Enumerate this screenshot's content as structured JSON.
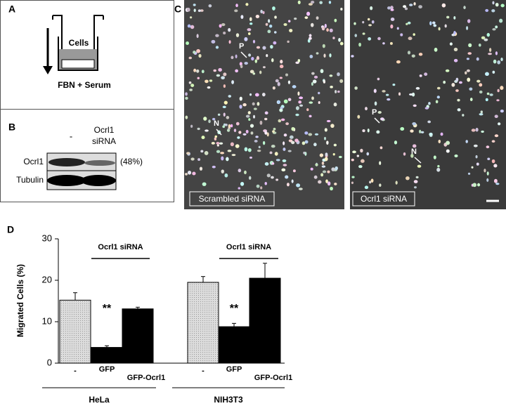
{
  "panel_a": {
    "letter": "A",
    "cells": "Cells",
    "bottom": "FBN + Serum"
  },
  "panel_b": {
    "letter": "B",
    "control": "-",
    "treatment": [
      "Ocrl1",
      "siRNA"
    ],
    "rows": [
      "Ocrl1",
      "Tubulin"
    ],
    "knockdown": "(48%)"
  },
  "panel_c": {
    "letter": "C",
    "left_label": "Scrambled siRNA",
    "right_label": "Ocrl1 siRNA",
    "markers": [
      "P",
      "N",
      "P",
      "N"
    ]
  },
  "chart_data": {
    "type": "bar",
    "letter": "D",
    "y_label": "Migrated Cells (%)",
    "categories": [
      "-",
      "GFP",
      "GFP-Ocrl1",
      "-",
      "GFP",
      "GFP-Ocrl1"
    ],
    "values": [
      15.2,
      3.8,
      13.1,
      19.5,
      8.8,
      20.5
    ],
    "errors": [
      1.8,
      0.4,
      0.4,
      1.4,
      0.8,
      3.6
    ],
    "colors": [
      "#d4d4d4",
      "#000000",
      "#000000",
      "#d4d4d4",
      "#000000",
      "#000000"
    ],
    "groups": [
      "HeLa",
      "NIH3T3"
    ],
    "siRNA_label": [
      "Ocrl1 siRNA",
      "Ocrl1 siRNA"
    ],
    "significance": [
      "**",
      "**"
    ],
    "ylim": [
      0,
      30
    ],
    "yticks": [
      0,
      10,
      20,
      30
    ]
  }
}
